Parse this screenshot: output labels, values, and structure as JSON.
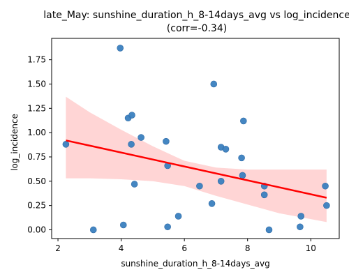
{
  "chart_data": {
    "type": "scatter",
    "title_line1": "late_May: sunshine_duration_h_8-14days_avg vs log_incidence",
    "title_line2": "(corr=-0.34)",
    "xlabel": "sunshine_duration_h_8-14days_avg",
    "ylabel": "log_incidence",
    "xlim": [
      1.8,
      10.9
    ],
    "ylim": [
      -0.09,
      1.97
    ],
    "xticks": [
      2,
      4,
      6,
      8,
      10
    ],
    "xtick_labels": [
      "2",
      "4",
      "6",
      "8",
      "10"
    ],
    "yticks": [
      0.0,
      0.25,
      0.5,
      0.75,
      1.0,
      1.25,
      1.5,
      1.75
    ],
    "ytick_labels": [
      "0.00",
      "0.25",
      "0.50",
      "0.75",
      "1.00",
      "1.25",
      "1.50",
      "1.75"
    ],
    "grid": false,
    "colors": {
      "points": "#3a7fbf",
      "point_edge": "#2f6aa6",
      "regression": "#ff0000",
      "ci_band": "#ffb3b3"
    },
    "points": [
      {
        "x": 2.25,
        "y": 0.88
      },
      {
        "x": 3.12,
        "y": 0.0
      },
      {
        "x": 3.97,
        "y": 1.87
      },
      {
        "x": 4.07,
        "y": 0.05
      },
      {
        "x": 4.22,
        "y": 1.15
      },
      {
        "x": 4.34,
        "y": 1.18
      },
      {
        "x": 4.32,
        "y": 0.88
      },
      {
        "x": 4.42,
        "y": 0.47
      },
      {
        "x": 4.63,
        "y": 0.95
      },
      {
        "x": 5.42,
        "y": 0.91
      },
      {
        "x": 5.47,
        "y": 0.66
      },
      {
        "x": 5.47,
        "y": 0.03
      },
      {
        "x": 5.81,
        "y": 0.14
      },
      {
        "x": 6.48,
        "y": 0.45
      },
      {
        "x": 6.87,
        "y": 0.27
      },
      {
        "x": 6.93,
        "y": 1.5
      },
      {
        "x": 7.16,
        "y": 0.85
      },
      {
        "x": 7.31,
        "y": 0.83
      },
      {
        "x": 7.16,
        "y": 0.5
      },
      {
        "x": 7.81,
        "y": 0.74
      },
      {
        "x": 7.84,
        "y": 0.56
      },
      {
        "x": 7.87,
        "y": 1.12
      },
      {
        "x": 8.53,
        "y": 0.45
      },
      {
        "x": 8.53,
        "y": 0.36
      },
      {
        "x": 8.68,
        "y": 0.0
      },
      {
        "x": 9.66,
        "y": 0.03
      },
      {
        "x": 9.69,
        "y": 0.14
      },
      {
        "x": 10.46,
        "y": 0.45
      },
      {
        "x": 10.5,
        "y": 0.25
      }
    ],
    "regression": {
      "x_start": 2.25,
      "y_start": 0.92,
      "x_end": 10.5,
      "y_end": 0.33
    },
    "ci_band": {
      "x": [
        2.25,
        3.0,
        4.0,
        5.0,
        6.0,
        7.0,
        8.0,
        9.0,
        10.0,
        10.5
      ],
      "upper": [
        1.37,
        1.21,
        1.03,
        0.86,
        0.71,
        0.64,
        0.62,
        0.62,
        0.62,
        0.62
      ],
      "lower": [
        0.53,
        0.53,
        0.52,
        0.5,
        0.45,
        0.35,
        0.26,
        0.17,
        0.11,
        0.08
      ]
    }
  }
}
